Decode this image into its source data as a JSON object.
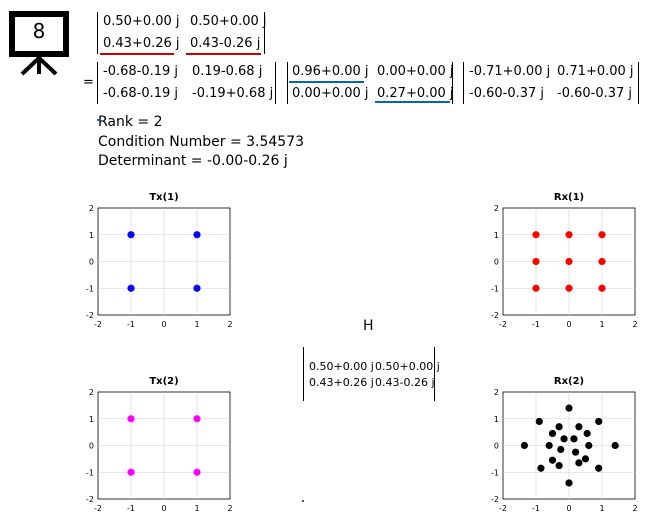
{
  "slide_badge": {
    "number": "8"
  },
  "matrix_top": {
    "rows": [
      [
        "0.50+0.00 j",
        "0.50+0.00 j"
      ],
      [
        "0.43+0.26 j",
        "0.43-0.26 j"
      ]
    ],
    "underline_color": "#cc0000"
  },
  "equals_sign": "=",
  "svd": {
    "U": {
      "rows": [
        [
          "-0.68-0.19 j",
          "0.19-0.68 j"
        ],
        [
          "-0.68-0.19 j",
          "-0.19+0.68 j"
        ]
      ]
    },
    "S": {
      "rows": [
        [
          "0.96+0.00 j",
          "0.00+0.00 j"
        ],
        [
          "0.00+0.00 j",
          "0.27+0.00 j"
        ]
      ],
      "underline_color": "#0066bb"
    },
    "V": {
      "rows": [
        [
          "-0.71+0.00 j",
          "0.71+0.00 j"
        ],
        [
          "-0.60-0.37 j",
          "-0.60-0.37 j"
        ]
      ]
    }
  },
  "info": {
    "rank": "Rank = 2",
    "condition": "Condition Number = 3.54573",
    "determinant": "Determinant = -0.00-0.26 j"
  },
  "channel": {
    "label": "H",
    "rows": [
      [
        "0.50+0.00 j",
        "0.50+0.00 j"
      ],
      [
        "0.43+0.26 j",
        "0.43-0.26 j"
      ]
    ]
  },
  "chart_data": [
    {
      "type": "scatter",
      "title": "Tx(1)",
      "color": "#0000ff",
      "xlim": [
        -2,
        2
      ],
      "ylim": [
        -2,
        2
      ],
      "ticks": [
        -2,
        -1,
        0,
        1,
        2
      ],
      "grid": true,
      "points": [
        [
          -1,
          1
        ],
        [
          1,
          1
        ],
        [
          -1,
          -1
        ],
        [
          1,
          -1
        ]
      ]
    },
    {
      "type": "scatter",
      "title": "Rx(1)",
      "color": "#ff0000",
      "xlim": [
        -2,
        2
      ],
      "ylim": [
        -2,
        2
      ],
      "ticks": [
        -2,
        -1,
        0,
        1,
        2
      ],
      "grid": true,
      "points": [
        [
          -1,
          1
        ],
        [
          0,
          1
        ],
        [
          1,
          1
        ],
        [
          -1,
          0
        ],
        [
          0,
          0
        ],
        [
          1,
          0
        ],
        [
          -1,
          -1
        ],
        [
          0,
          -1
        ],
        [
          1,
          -1
        ]
      ]
    },
    {
      "type": "scatter",
      "title": "Tx(2)",
      "color": "#ff00ff",
      "xlim": [
        -2,
        2
      ],
      "ylim": [
        -2,
        2
      ],
      "ticks": [
        -2,
        -1,
        0,
        1,
        2
      ],
      "grid": true,
      "points": [
        [
          -1,
          1
        ],
        [
          1,
          1
        ],
        [
          -1,
          -1
        ],
        [
          1,
          -1
        ]
      ]
    },
    {
      "type": "scatter",
      "title": "Rx(2)",
      "color": "#000000",
      "xlim": [
        -2,
        2
      ],
      "ylim": [
        -2,
        2
      ],
      "ticks": [
        -2,
        -1,
        0,
        1,
        2
      ],
      "grid": true,
      "points": [
        [
          0,
          1.4
        ],
        [
          -0.9,
          0.9
        ],
        [
          0.9,
          0.9
        ],
        [
          -0.3,
          0.7
        ],
        [
          0.3,
          0.7
        ],
        [
          -0.5,
          0.45
        ],
        [
          0.55,
          0.45
        ],
        [
          -0.15,
          0.25
        ],
        [
          0.15,
          0.25
        ],
        [
          -1.35,
          0
        ],
        [
          1.4,
          0
        ],
        [
          -0.6,
          0
        ],
        [
          0.6,
          0
        ],
        [
          -0.25,
          -0.15
        ],
        [
          0.2,
          -0.25
        ],
        [
          -0.5,
          -0.55
        ],
        [
          0.5,
          -0.5
        ],
        [
          -0.3,
          -0.75
        ],
        [
          0.3,
          -0.65
        ],
        [
          -0.85,
          -0.85
        ],
        [
          0.9,
          -0.85
        ],
        [
          0,
          -1.4
        ]
      ]
    }
  ]
}
